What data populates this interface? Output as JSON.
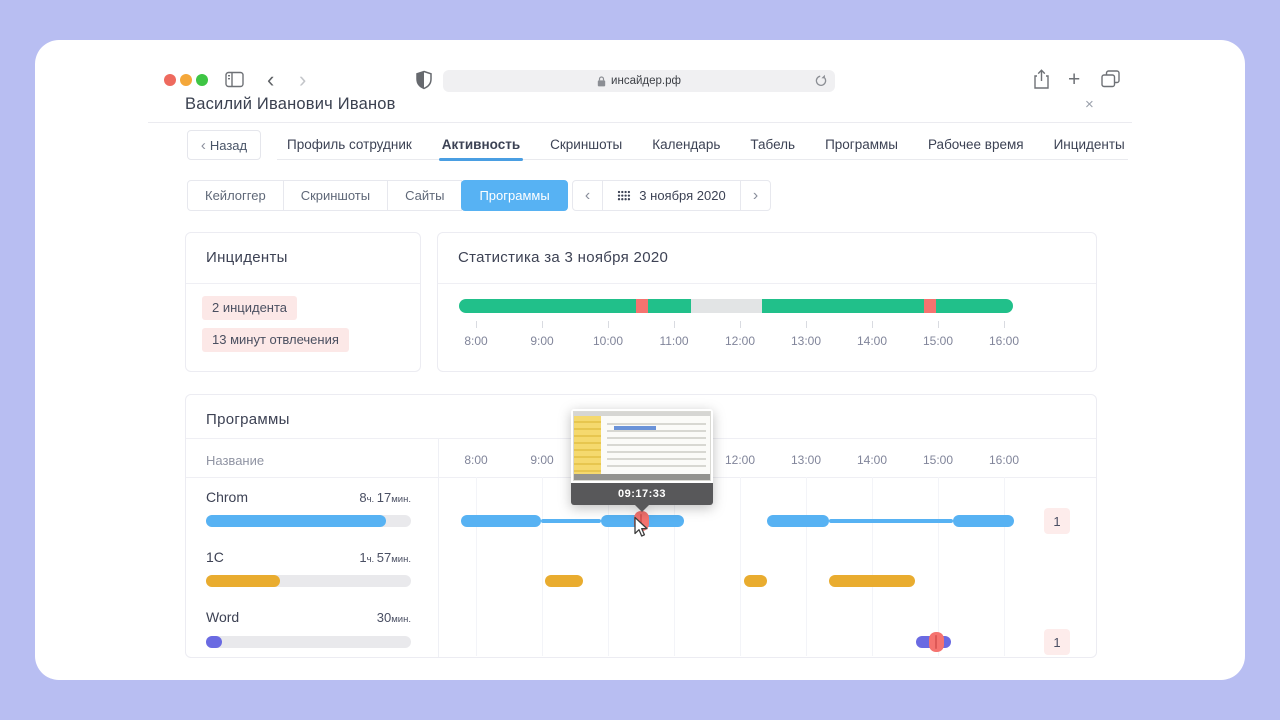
{
  "colors": {
    "timeline": {
      "active": "#21c08a",
      "incident": "#f5736f",
      "idle": "#e2e4e5"
    },
    "rows": {
      "blue": "#57b2f3",
      "yellow": "#e9ac2f",
      "purple": "#6a6ae2"
    },
    "accent_blue": "#57b2f3",
    "tab_underline": "#4a9ee2",
    "pink_badge_bg": "#fce8e7",
    "background": "#b8bef2"
  },
  "browser": {
    "url": "инсайдер.рф",
    "back_glyph": "‹",
    "forward_glyph": "›",
    "new_tab_glyph": "+",
    "icons": [
      "traffic-lights",
      "sidebar-icon",
      "back-icon",
      "forward-icon",
      "shield-icon",
      "lock-icon",
      "reload-icon",
      "share-icon",
      "new-tab-icon",
      "tabs-overview-icon"
    ]
  },
  "page": {
    "title": "Василий Иванович Иванов",
    "close_glyph": "×"
  },
  "nav": {
    "back_button": "Назад",
    "back_chevron": "‹",
    "tabs": [
      "Профиль сотрудник",
      "Активность",
      "Скриншоты",
      "Календарь",
      "Табель",
      "Программы",
      "Рабочее время",
      "Инциденты"
    ],
    "active_tab": "Активность"
  },
  "filters": {
    "subtabs": [
      "Кейлоггер",
      "Скриншоты",
      "Сайты",
      "Программы"
    ],
    "active_subtab": "Программы",
    "date": {
      "prev": "‹",
      "label": "3 ноября 2020",
      "next": "›"
    }
  },
  "incidents": {
    "title": "Инциденты",
    "badges": [
      "2 инцидента",
      "13 минут отвлечения"
    ]
  },
  "stats": {
    "title": "Статистика за 3 ноября 2020",
    "axis": [
      "8:00",
      "9:00",
      "10:00",
      "11:00",
      "12:00",
      "13:00",
      "14:00",
      "15:00",
      "16:00"
    ],
    "segments": [
      {
        "type": "active",
        "width": 31.9
      },
      {
        "type": "incident",
        "width": 2.2
      },
      {
        "type": "active",
        "width": 7.8
      },
      {
        "type": "idle",
        "width": 12.8
      },
      {
        "type": "active",
        "width": 29.2
      },
      {
        "type": "incident",
        "width": 2.2
      },
      {
        "type": "active",
        "width": 13.9
      }
    ]
  },
  "programs": {
    "title": "Программы",
    "name_column": "Название",
    "axis": [
      "8:00",
      "9:00",
      "10:00",
      "11:00",
      "12:00",
      "13:00",
      "14:00",
      "15:00",
      "16:00"
    ],
    "tooltip": {
      "time": "09:17:33"
    },
    "rows": [
      {
        "name": "Chrom",
        "duration": [
          {
            "value": "8",
            "unit": "ч. "
          },
          {
            "value": "17",
            "unit": "мин."
          }
        ],
        "progress": 88,
        "color": "blue",
        "segments": [
          {
            "start": 3.5,
            "end": 15.6,
            "kind": "thick"
          },
          {
            "start": 15.6,
            "end": 24.7,
            "kind": "thin"
          },
          {
            "start": 24.7,
            "end": 37.3,
            "kind": "thick"
          },
          {
            "start": 49.8,
            "end": 59.2,
            "kind": "thick"
          },
          {
            "start": 59.2,
            "end": 78.0,
            "kind": "thin"
          },
          {
            "start": 78.0,
            "end": 87.3,
            "kind": "thick"
          }
        ],
        "incident_at": 30.8,
        "incident_count": "1"
      },
      {
        "name": "1С",
        "duration": [
          {
            "value": "1",
            "unit": "ч. "
          },
          {
            "value": "57",
            "unit": "мин."
          }
        ],
        "progress": 36,
        "color": "yellow",
        "segments": [
          {
            "start": 16.2,
            "end": 22.0,
            "kind": "thick"
          },
          {
            "start": 46.4,
            "end": 49.8,
            "kind": "thick"
          },
          {
            "start": 59.2,
            "end": 72.3,
            "kind": "thick"
          }
        ],
        "incident_at": null,
        "incident_count": null
      },
      {
        "name": "Word",
        "duration": [
          {
            "value": "30",
            "unit": "мин."
          }
        ],
        "progress": 8,
        "color": "purple",
        "segments": [
          {
            "start": 72.4,
            "end": 77.7,
            "kind": "thick"
          }
        ],
        "incident_at": 75.5,
        "incident_count": "1"
      }
    ]
  }
}
